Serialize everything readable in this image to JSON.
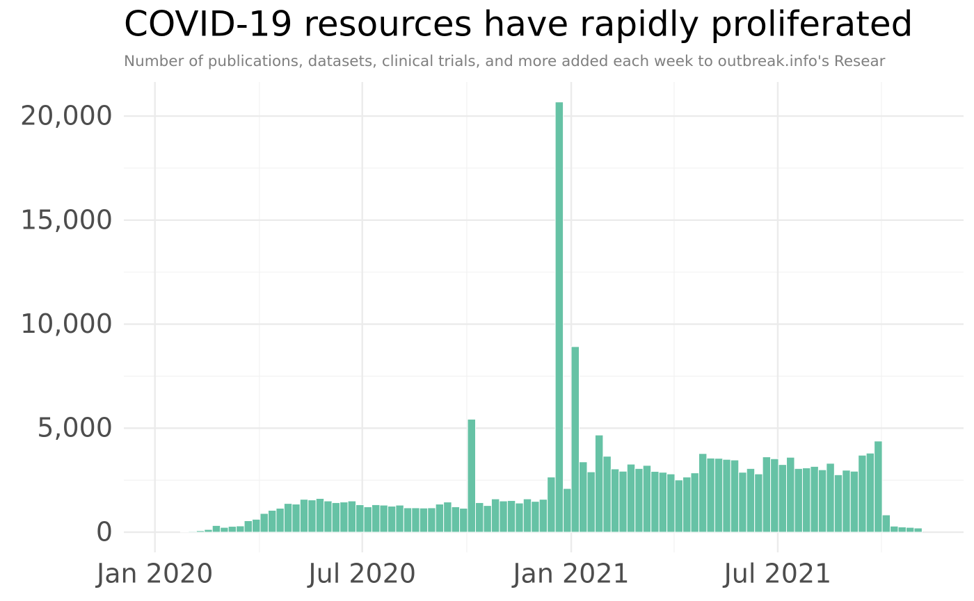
{
  "chart_data": {
    "type": "bar",
    "title": "COVID-19 resources have rapidly proliferated",
    "subtitle": "Number of publications, datasets, clinical trials, and more added each week to outbreak.info's Resear",
    "color": "#66c2a5",
    "grid": true,
    "x": [
      4,
      5,
      6,
      7,
      8,
      9,
      10,
      11,
      12,
      13,
      14,
      15,
      16,
      17,
      18,
      19,
      20,
      21,
      22,
      23,
      24,
      25,
      26,
      27,
      28,
      29,
      30,
      31,
      32,
      33,
      34,
      35,
      36,
      37,
      38,
      39,
      40,
      41,
      42,
      43,
      44,
      45,
      46,
      47,
      48,
      49,
      50,
      51,
      52,
      53,
      54,
      55,
      56,
      57,
      58,
      59,
      60,
      61,
      62,
      63,
      64,
      65,
      66,
      67,
      68,
      69,
      70,
      71,
      72,
      73,
      74,
      75,
      76,
      77,
      78,
      79,
      80,
      81,
      82,
      83,
      84,
      85,
      86,
      87,
      88,
      89,
      90,
      91,
      92,
      93,
      94,
      95,
      96
    ],
    "values": [
      30,
      40,
      70,
      130,
      320,
      230,
      280,
      300,
      550,
      620,
      900,
      1050,
      1150,
      1380,
      1350,
      1580,
      1550,
      1620,
      1500,
      1420,
      1450,
      1500,
      1320,
      1220,
      1320,
      1300,
      1250,
      1300,
      1170,
      1170,
      1160,
      1170,
      1350,
      1450,
      1220,
      1150,
      5430,
      1420,
      1280,
      1600,
      1500,
      1520,
      1400,
      1600,
      1480,
      1580,
      2650,
      20680,
      2100,
      8920,
      3380,
      2900,
      4670,
      3650,
      3040,
      2930,
      3270,
      3060,
      3210,
      2920,
      2880,
      2800,
      2510,
      2650,
      2850,
      3780,
      3560,
      3550,
      3500,
      3470,
      2880,
      3060,
      2800,
      3620,
      3530,
      3250,
      3600,
      3060,
      3090,
      3160,
      3000,
      3310,
      2760,
      2980,
      2930,
      3700,
      3800,
      4380,
      830,
      290,
      250,
      230,
      200
    ],
    "xlim": [
      -3.6,
      101.7
    ],
    "xticks": [
      {
        "value": 0.3,
        "label": "Jan 2020"
      },
      {
        "value": 26.3,
        "label": "Jul 2020"
      },
      {
        "value": 52.5,
        "label": "Jan 2021"
      },
      {
        "value": 78.4,
        "label": "Jul 2021"
      }
    ],
    "xminorticks": [
      13.4,
      39.4,
      65.4,
      91.4
    ],
    "ylim": [
      -970,
      21640
    ],
    "yticks": [
      0,
      {
        "value": 5000,
        "label": "5,000"
      },
      {
        "value": 10000,
        "label": "10,000"
      },
      {
        "value": 15000,
        "label": "15,000"
      },
      {
        "value": 20000,
        "label": "20,000"
      }
    ],
    "yminorticks": [
      2500,
      7500,
      12500,
      17500
    ]
  }
}
